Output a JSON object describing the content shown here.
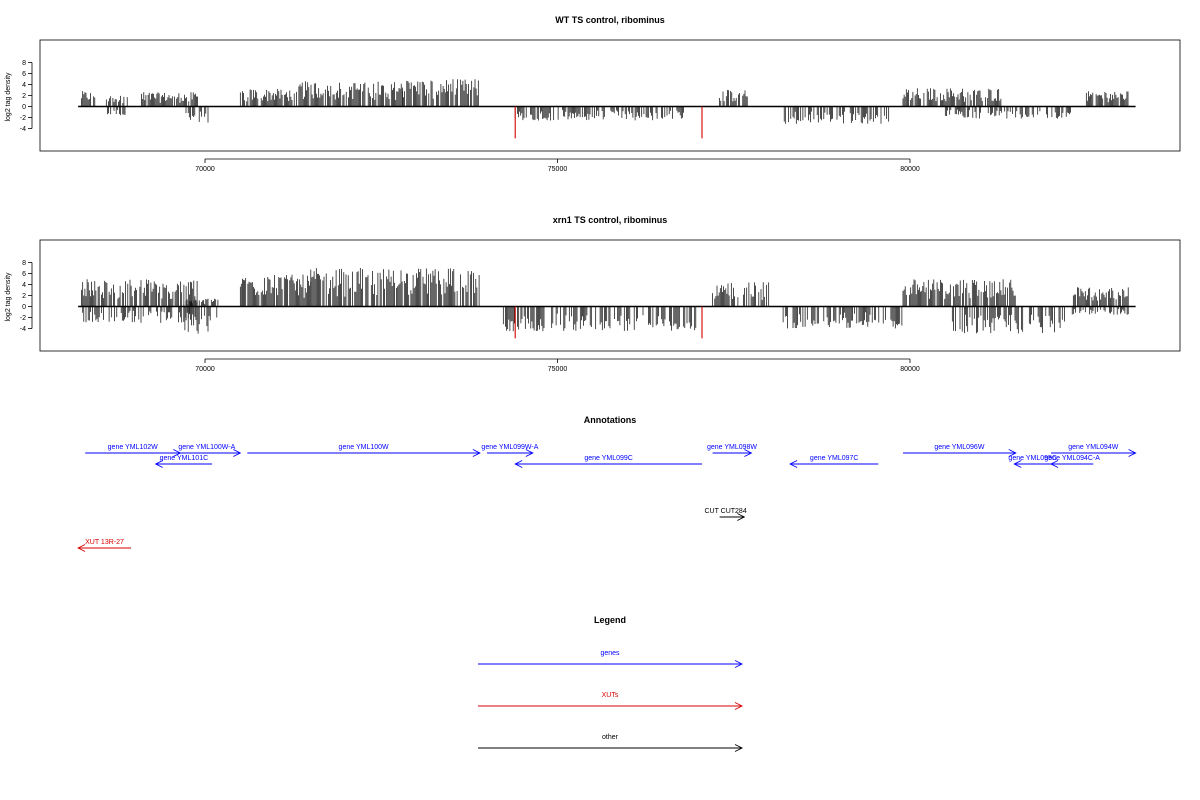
{
  "chart_data": [
    {
      "type": "bar",
      "title": "WT TS control, ribominus",
      "ylabel": "log2 tag density",
      "xlim": [
        68200,
        83200
      ],
      "ylim": [
        -6,
        9
      ],
      "x_ticks": [
        70000,
        75000,
        80000
      ],
      "y_ticks": [
        8,
        6,
        4,
        2,
        0,
        -2,
        -4
      ],
      "grid": false,
      "profile": [
        {
          "range": [
            68250,
            68450
          ],
          "pos": 2.8,
          "neg": 0
        },
        {
          "range": [
            68600,
            68900
          ],
          "pos": 2.2,
          "neg": -2.2
        },
        {
          "range": [
            69100,
            69900
          ],
          "pos": 2.6,
          "neg": 0
        },
        {
          "range": [
            69700,
            70100
          ],
          "pos": 0,
          "neg": -3.0
        },
        {
          "range": [
            70500,
            71300
          ],
          "pos": 3.2,
          "neg": 0
        },
        {
          "range": [
            71300,
            72800
          ],
          "pos": 4.6,
          "neg": 0
        },
        {
          "range": [
            72800,
            73900
          ],
          "pos": 5.0,
          "neg": 0
        },
        {
          "range": [
            74400,
            76800
          ],
          "pos": 0,
          "neg": -2.6
        },
        {
          "range": [
            77300,
            77700
          ],
          "pos": 3.0,
          "neg": 0
        },
        {
          "range": [
            78200,
            79700
          ],
          "pos": 0,
          "neg": -3.2
        },
        {
          "range": [
            79900,
            81300
          ],
          "pos": 3.4,
          "neg": 0
        },
        {
          "range": [
            80500,
            82300
          ],
          "pos": 0,
          "neg": -2.2
        },
        {
          "range": [
            82500,
            83100
          ],
          "pos": 2.8,
          "neg": 0
        }
      ],
      "highlight_x": [
        74400,
        77050
      ],
      "highlight_min": -5.8,
      "highlight_color": "#d40000"
    },
    {
      "type": "bar",
      "title": "xrn1 TS control, ribominus",
      "ylabel": "log2 tag density",
      "xlim": [
        68200,
        83200
      ],
      "ylim": [
        -6,
        9
      ],
      "x_ticks": [
        70000,
        75000,
        80000
      ],
      "y_ticks": [
        8,
        6,
        4,
        2,
        0,
        -2,
        -4
      ],
      "grid": false,
      "profile": [
        {
          "range": [
            68250,
            69900
          ],
          "pos": 5.0,
          "neg": -3.0
        },
        {
          "range": [
            69700,
            70200
          ],
          "pos": 1.5,
          "neg": -5.0
        },
        {
          "range": [
            70500,
            71500
          ],
          "pos": 5.8,
          "neg": 0
        },
        {
          "range": [
            71500,
            73900
          ],
          "pos": 7.0,
          "neg": 0
        },
        {
          "range": [
            74200,
            77000
          ],
          "pos": 0,
          "neg": -4.5
        },
        {
          "range": [
            77200,
            78000
          ],
          "pos": 4.5,
          "neg": 0
        },
        {
          "range": [
            78200,
            79900
          ],
          "pos": 0,
          "neg": -4.0
        },
        {
          "range": [
            79900,
            81500
          ],
          "pos": 5.0,
          "neg": 0
        },
        {
          "range": [
            80600,
            82200
          ],
          "pos": 0,
          "neg": -5.0
        },
        {
          "range": [
            82300,
            83100
          ],
          "pos": 3.5,
          "neg": -1.5
        }
      ],
      "highlight_x": [
        74400,
        77050
      ],
      "highlight_min": -5.8,
      "highlight_color": "#d40000"
    }
  ],
  "annotations": {
    "title": "Annotations",
    "items": [
      {
        "label": "gene YML102W",
        "start": 68300,
        "end": 69650,
        "row": 0,
        "color": "#0000ff"
      },
      {
        "label": "gene YML100W-A",
        "start": 69550,
        "end": 70500,
        "row": 0,
        "color": "#0000ff"
      },
      {
        "label": "gene YML100W",
        "start": 70600,
        "end": 73900,
        "row": 0,
        "color": "#0000ff"
      },
      {
        "label": "gene YML099W-A",
        "start": 74000,
        "end": 74650,
        "row": 0,
        "color": "#0000ff"
      },
      {
        "label": "gene YML098W",
        "start": 77200,
        "end": 77750,
        "row": 0,
        "color": "#0000ff"
      },
      {
        "label": "gene YML096W",
        "start": 79900,
        "end": 81500,
        "row": 0,
        "color": "#0000ff"
      },
      {
        "label": "gene YML094W",
        "start": 82000,
        "end": 83200,
        "row": 0,
        "color": "#0000ff"
      },
      {
        "label": "gene YML101C",
        "start": 70100,
        "end": 69300,
        "row": 1,
        "color": "#0000ff"
      },
      {
        "label": "gene YML099C",
        "start": 77050,
        "end": 74400,
        "row": 1,
        "color": "#0000ff"
      },
      {
        "label": "gene YML097C",
        "start": 79550,
        "end": 78300,
        "row": 1,
        "color": "#0000ff"
      },
      {
        "label": "gene YML095C",
        "start": 82000,
        "end": 81480,
        "row": 1,
        "color": "#0000ff"
      },
      {
        "label": "gene YML094C-A",
        "start": 82600,
        "end": 82000,
        "row": 1,
        "color": "#0000ff"
      },
      {
        "label": "CUT CUT284",
        "start": 77300,
        "end": 77650,
        "row": 2,
        "color": "#000000"
      },
      {
        "label": "XUT 13R-27",
        "start": 68950,
        "end": 68200,
        "row": 3,
        "color": "#d40000"
      }
    ]
  },
  "legend": {
    "title": "Legend",
    "items": [
      {
        "label": "genes",
        "color": "#0000ff"
      },
      {
        "label": "XUTs",
        "color": "#d40000"
      },
      {
        "label": "other",
        "color": "#000000"
      }
    ]
  }
}
